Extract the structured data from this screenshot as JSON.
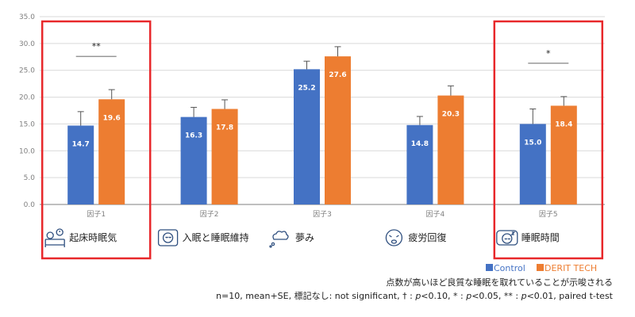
{
  "colors": {
    "control": "#4472C4",
    "derit": "#ED7D31",
    "highlight": "#E8282B",
    "grid": "#d9d9d9",
    "axis": "#7f7f7f",
    "error": "#555555"
  },
  "chart_data": {
    "type": "bar",
    "title": "",
    "xlabel": "",
    "ylabel": "",
    "ylim": [
      0,
      35
    ],
    "yticks": [
      "0.0",
      "5.0",
      "10.0",
      "15.0",
      "20.0",
      "25.0",
      "30.0",
      "35.0"
    ],
    "categories": [
      "因子1",
      "因子2",
      "因子3",
      "因子4",
      "因子5"
    ],
    "factor_names": [
      "起床時眠気",
      "入眠と睡眠維持",
      "夢み",
      "疲労回復",
      "睡眠時間"
    ],
    "factor_icons": [
      "bed-alarm-icon",
      "sleeping-face-icon",
      "dream-cloud-icon",
      "tired-face-icon",
      "sleeping-pillow-icon"
    ],
    "series": [
      {
        "name": "Control",
        "values": [
          14.7,
          16.3,
          25.2,
          14.8,
          15.0
        ],
        "labels": [
          "14.7",
          "16.3",
          "25.2",
          "14.8",
          "15.0"
        ],
        "se": [
          2.6,
          1.8,
          1.5,
          1.6,
          2.8
        ]
      },
      {
        "name": "DERIT TECH",
        "values": [
          19.6,
          17.8,
          27.6,
          20.3,
          18.4
        ],
        "labels": [
          "19.6",
          "17.8",
          "27.6",
          "20.3",
          "18.4"
        ],
        "se": [
          1.8,
          1.7,
          1.8,
          1.8,
          1.7
        ]
      }
    ],
    "significance": [
      {
        "category_index": 0,
        "mark": "**"
      },
      {
        "category_index": 4,
        "mark": "*"
      }
    ],
    "highlighted_categories": [
      0,
      4
    ],
    "legend_position": "bottom-right",
    "grid": true
  },
  "notes": {
    "line1": "点数が高いほど良質な睡眠を取れていることが示唆される",
    "line2_parts": [
      {
        "text": "n=10, mean+SE, 標記なし: not significant, † : ",
        "italic": false
      },
      {
        "text": "p",
        "italic": true
      },
      {
        "text": "<0.10, * : ",
        "italic": false
      },
      {
        "text": "p",
        "italic": true
      },
      {
        "text": "<0.05, ** : ",
        "italic": false
      },
      {
        "text": "p",
        "italic": true
      },
      {
        "text": "<0.01, paired t-test",
        "italic": false
      }
    ]
  }
}
